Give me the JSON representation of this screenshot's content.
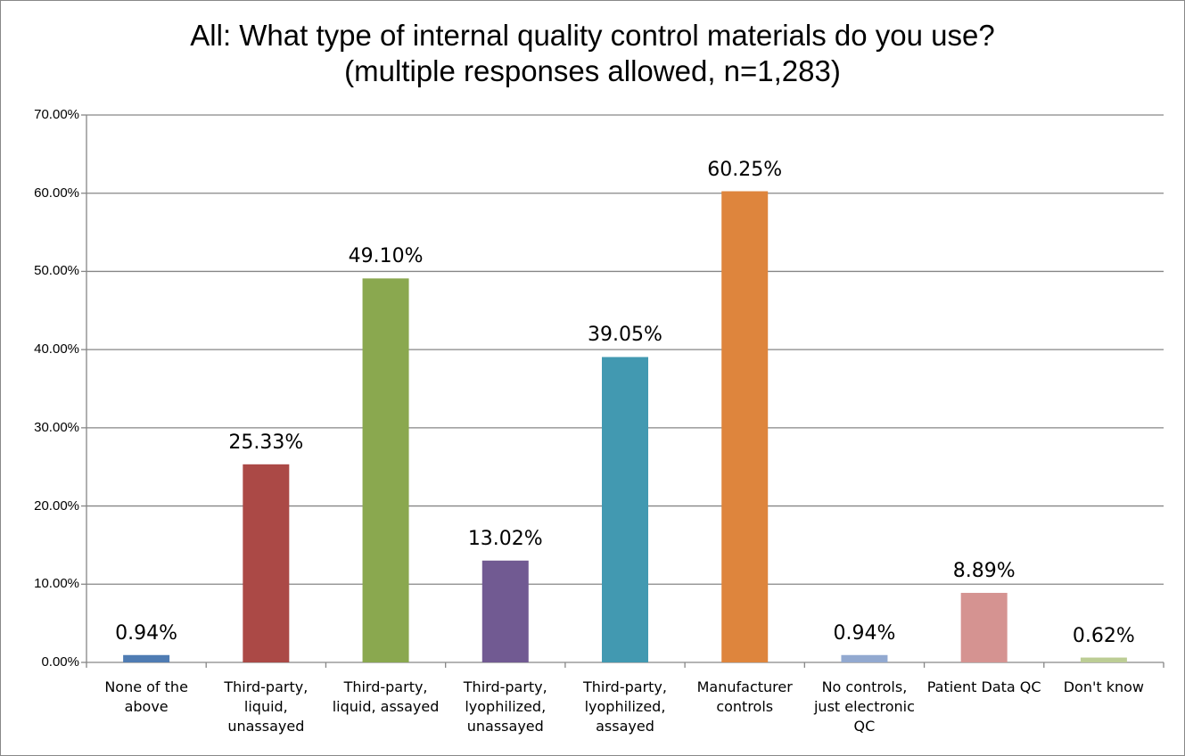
{
  "chart_data": {
    "type": "bar",
    "title": "All: What type of internal quality control materials do you use?",
    "subtitle": "(multiple responses allowed, n=1,283)",
    "categories": [
      "None of the above",
      "Third-party, liquid, unassayed",
      "Third-party, liquid, assayed",
      "Third-party, lyophilized, unassayed",
      "Third-party, lyophilized, assayed",
      "Manufacturer controls",
      "No controls, just electronic QC",
      "Patient Data QC",
      "Don't know"
    ],
    "values": [
      0.94,
      25.33,
      49.1,
      13.02,
      39.05,
      60.25,
      0.94,
      8.89,
      0.62
    ],
    "data_labels": [
      "0.94%",
      "25.33%",
      "49.10%",
      "13.02%",
      "39.05%",
      "60.25%",
      "0.94%",
      "8.89%",
      "0.62%"
    ],
    "colors": [
      "#4f7cb3",
      "#ab4946",
      "#8aa84f",
      "#715a92",
      "#4299b1",
      "#de853d",
      "#92a9d0",
      "#d59391",
      "#bccd95"
    ],
    "ylim": [
      0,
      70
    ],
    "yticks": [
      "0.00%",
      "10.00%",
      "20.00%",
      "30.00%",
      "40.00%",
      "50.00%",
      "60.00%",
      "70.00%"
    ],
    "grid": true,
    "legend": "none",
    "xlabel": "",
    "ylabel": ""
  }
}
